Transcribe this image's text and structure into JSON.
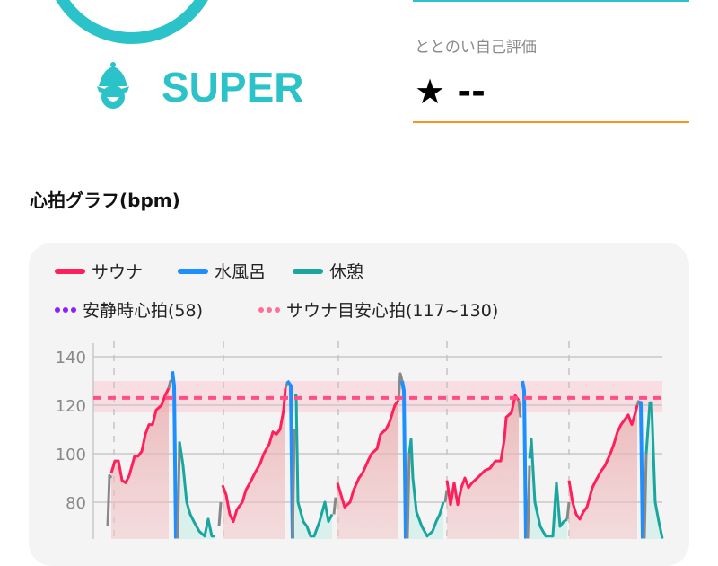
{
  "result": {
    "level": "SUPER",
    "rating_label": "ととのい自己評価",
    "rating_star": "★",
    "rating_value": "--"
  },
  "colors": {
    "accent": "#2bc2c9",
    "sauna": "#ff1f5a",
    "water": "#1e8fff",
    "rest": "#1aa59e",
    "resting_hr": "#8a1fff",
    "target": "#ff6f9a",
    "transition": "#888888",
    "orange": "#f7931e"
  },
  "graph": {
    "title": "心拍グラフ(bpm)",
    "legend": {
      "sauna": "サウナ",
      "water": "水風呂",
      "rest": "休憩",
      "resting_hr": "安静時心拍(58)",
      "target": "サウナ目安心拍(117~130)"
    }
  },
  "chart_data": {
    "type": "line",
    "title": "心拍グラフ(bpm)",
    "ylabel": "bpm",
    "y_ticks": [
      "140",
      "120",
      "100",
      "80"
    ],
    "y_tick_values": [
      140,
      120,
      100,
      80
    ],
    "ylim": [
      65,
      145
    ],
    "xlim": [
      0,
      317
    ],
    "x_grid": [
      11.5,
      72.5,
      136.5,
      197,
      265
    ],
    "grid": true,
    "legend_position": "top",
    "resting_hr": 58,
    "target_range": [
      117,
      130
    ],
    "target_line": 123,
    "segments": [
      {
        "series": "transition",
        "points": [
          [
            8,
            70
          ],
          [
            9,
            91
          ],
          [
            10,
            90
          ]
        ]
      },
      {
        "series": "sauna",
        "points": [
          [
            10,
            92
          ],
          [
            12,
            97
          ],
          [
            14,
            97
          ],
          [
            16,
            89
          ],
          [
            18,
            88
          ],
          [
            20,
            91
          ],
          [
            23,
            99
          ],
          [
            25,
            99
          ],
          [
            27,
            101
          ],
          [
            29,
            108
          ],
          [
            31,
            112
          ],
          [
            33,
            112
          ],
          [
            35,
            118
          ],
          [
            38,
            120
          ],
          [
            40,
            124
          ],
          [
            42,
            127
          ]
        ]
      },
      {
        "series": "transition",
        "points": [
          [
            42,
            127
          ],
          [
            43,
            130
          ],
          [
            44,
            130
          ]
        ]
      },
      {
        "series": "water",
        "points": [
          [
            44,
            134
          ],
          [
            45,
            128
          ],
          [
            46,
            65
          ]
        ]
      },
      {
        "series": "transition",
        "points": [
          [
            47,
            65
          ],
          [
            48,
            105
          ]
        ]
      },
      {
        "series": "rest",
        "points": [
          [
            48,
            105
          ],
          [
            50,
            95
          ],
          [
            52,
            80
          ],
          [
            54,
            75
          ],
          [
            56,
            72
          ],
          [
            59,
            68
          ],
          [
            62,
            66
          ],
          [
            64,
            73
          ],
          [
            66,
            66
          ],
          [
            68,
            66
          ]
        ]
      },
      {
        "series": "transition",
        "points": [
          [
            70,
            70
          ],
          [
            71,
            80
          ]
        ]
      },
      {
        "series": "sauna",
        "points": [
          [
            72,
            87
          ],
          [
            74,
            83
          ],
          [
            76,
            75
          ],
          [
            78,
            72
          ],
          [
            80,
            77
          ],
          [
            83,
            80
          ],
          [
            85,
            85
          ],
          [
            88,
            89
          ],
          [
            90,
            92
          ],
          [
            93,
            96
          ],
          [
            95,
            100
          ],
          [
            98,
            104
          ],
          [
            100,
            109
          ],
          [
            102,
            108
          ],
          [
            104,
            110
          ],
          [
            106,
            118
          ],
          [
            107,
            127
          ]
        ]
      },
      {
        "series": "transition",
        "points": [
          [
            107,
            127
          ],
          [
            108,
            129
          ]
        ]
      },
      {
        "series": "water",
        "points": [
          [
            108,
            130
          ],
          [
            110,
            128
          ],
          [
            111,
            65
          ]
        ]
      },
      {
        "series": "transition",
        "points": [
          [
            111,
            65
          ],
          [
            112,
            110
          ]
        ]
      },
      {
        "series": "rest",
        "points": [
          [
            112,
            124
          ],
          [
            113,
            124
          ],
          [
            114,
            80
          ],
          [
            117,
            72
          ],
          [
            119,
            70
          ],
          [
            121,
            66
          ],
          [
            123,
            66
          ],
          [
            126,
            72
          ],
          [
            129,
            80
          ],
          [
            131,
            72
          ],
          [
            133,
            75
          ]
        ]
      },
      {
        "series": "transition",
        "points": [
          [
            134,
            75
          ],
          [
            135,
            82
          ]
        ]
      },
      {
        "series": "sauna",
        "points": [
          [
            136,
            88
          ],
          [
            138,
            83
          ],
          [
            140,
            78
          ],
          [
            143,
            80
          ],
          [
            145,
            85
          ],
          [
            148,
            90
          ],
          [
            150,
            92
          ],
          [
            153,
            97
          ],
          [
            155,
            100
          ],
          [
            158,
            102
          ],
          [
            160,
            108
          ],
          [
            163,
            110
          ],
          [
            165,
            113
          ],
          [
            168,
            120
          ],
          [
            170,
            122
          ]
        ]
      },
      {
        "series": "transition",
        "points": [
          [
            170,
            122
          ],
          [
            171,
            133
          ],
          [
            172,
            130
          ]
        ]
      },
      {
        "series": "water",
        "points": [
          [
            172,
            130
          ],
          [
            173,
            126
          ],
          [
            174,
            65
          ]
        ]
      },
      {
        "series": "transition",
        "points": [
          [
            175,
            65
          ],
          [
            176,
            100
          ]
        ]
      },
      {
        "series": "rest",
        "points": [
          [
            176,
            100
          ],
          [
            177,
            106
          ],
          [
            178,
            90
          ],
          [
            180,
            76
          ],
          [
            183,
            70
          ],
          [
            186,
            66
          ],
          [
            189,
            68
          ],
          [
            191,
            72
          ],
          [
            193,
            75
          ],
          [
            195,
            80
          ]
        ]
      },
      {
        "series": "transition",
        "points": [
          [
            196,
            80
          ],
          [
            197,
            85
          ]
        ]
      },
      {
        "series": "sauna",
        "points": [
          [
            197,
            89
          ],
          [
            199,
            79
          ],
          [
            201,
            88
          ],
          [
            203,
            79
          ],
          [
            205,
            86
          ],
          [
            207,
            90
          ],
          [
            209,
            86
          ],
          [
            211,
            88
          ],
          [
            214,
            90
          ],
          [
            218,
            93
          ],
          [
            221,
            94
          ],
          [
            224,
            97
          ],
          [
            227,
            97
          ],
          [
            229,
            106
          ],
          [
            230,
            115
          ],
          [
            233,
            117
          ],
          [
            235,
            124
          ],
          [
            237,
            122
          ]
        ]
      },
      {
        "series": "transition",
        "points": [
          [
            237,
            122
          ],
          [
            238,
            115
          ]
        ]
      },
      {
        "series": "water",
        "points": [
          [
            239,
            130
          ],
          [
            240,
            126
          ],
          [
            241,
            65
          ]
        ]
      },
      {
        "series": "transition",
        "points": [
          [
            242,
            65
          ],
          [
            243,
            95
          ]
        ]
      },
      {
        "series": "rest",
        "points": [
          [
            243,
            98
          ],
          [
            244,
            106
          ],
          [
            246,
            80
          ],
          [
            249,
            70
          ],
          [
            252,
            66
          ],
          [
            256,
            66
          ],
          [
            258,
            88
          ],
          [
            260,
            70
          ],
          [
            262,
            72
          ],
          [
            264,
            73
          ]
        ]
      },
      {
        "series": "transition",
        "points": [
          [
            264,
            73
          ],
          [
            265,
            80
          ]
        ]
      },
      {
        "series": "sauna",
        "points": [
          [
            265,
            89
          ],
          [
            267,
            80
          ],
          [
            269,
            75
          ],
          [
            271,
            73
          ],
          [
            273,
            76
          ],
          [
            275,
            78
          ],
          [
            278,
            86
          ],
          [
            280,
            89
          ],
          [
            283,
            93
          ],
          [
            285,
            95
          ],
          [
            288,
            100
          ],
          [
            290,
            104
          ],
          [
            292,
            109
          ],
          [
            294,
            112
          ],
          [
            298,
            116
          ],
          [
            300,
            112
          ],
          [
            302,
            117
          ],
          [
            303,
            120
          ]
        ]
      },
      {
        "series": "transition",
        "points": [
          [
            303,
            120
          ],
          [
            304,
            122
          ]
        ]
      },
      {
        "series": "water",
        "points": [
          [
            304,
            121
          ],
          [
            305,
            121
          ],
          [
            306,
            65
          ]
        ]
      },
      {
        "series": "transition",
        "points": [
          [
            307,
            65
          ],
          [
            308,
            100
          ]
        ]
      },
      {
        "series": "rest",
        "points": [
          [
            308,
            100
          ],
          [
            310,
            121
          ],
          [
            311,
            121
          ],
          [
            313,
            80
          ],
          [
            315,
            72
          ],
          [
            317,
            65
          ]
        ]
      }
    ]
  }
}
